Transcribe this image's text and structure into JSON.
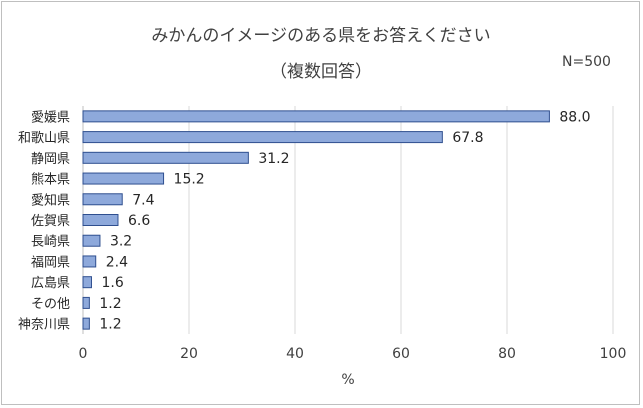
{
  "chart_data": {
    "type": "bar",
    "orientation": "horizontal",
    "title": "みかんのイメージのある県をお答えください",
    "subtitle": "（複数回答）",
    "note": "N=500",
    "categories": [
      "愛媛県",
      "和歌山県",
      "静岡県",
      "熊本県",
      "愛知県",
      "佐賀県",
      "長崎県",
      "福岡県",
      "広島県",
      "その他",
      "神奈川県"
    ],
    "values": [
      88.0,
      67.8,
      31.2,
      15.2,
      7.4,
      6.6,
      3.2,
      2.4,
      1.6,
      1.2,
      1.2
    ],
    "value_labels": [
      "88.0",
      "67.8",
      "31.2",
      "15.2",
      "7.4",
      "6.6",
      "3.2",
      "2.4",
      "1.6",
      "1.2",
      "1.2"
    ],
    "xlabel": "%",
    "ylabel": "",
    "xlim": [
      0,
      100
    ],
    "xticks": [
      0,
      20,
      40,
      60,
      80,
      100
    ],
    "xtick_labels": [
      "0",
      "20",
      "40",
      "60",
      "80",
      "100"
    ],
    "grid": true,
    "colors": {
      "bar_fill": "#8ea9db",
      "bar_stroke": "#2f4f8f",
      "grid": "#d9d9d9",
      "axis": "#bfbfbf"
    }
  }
}
